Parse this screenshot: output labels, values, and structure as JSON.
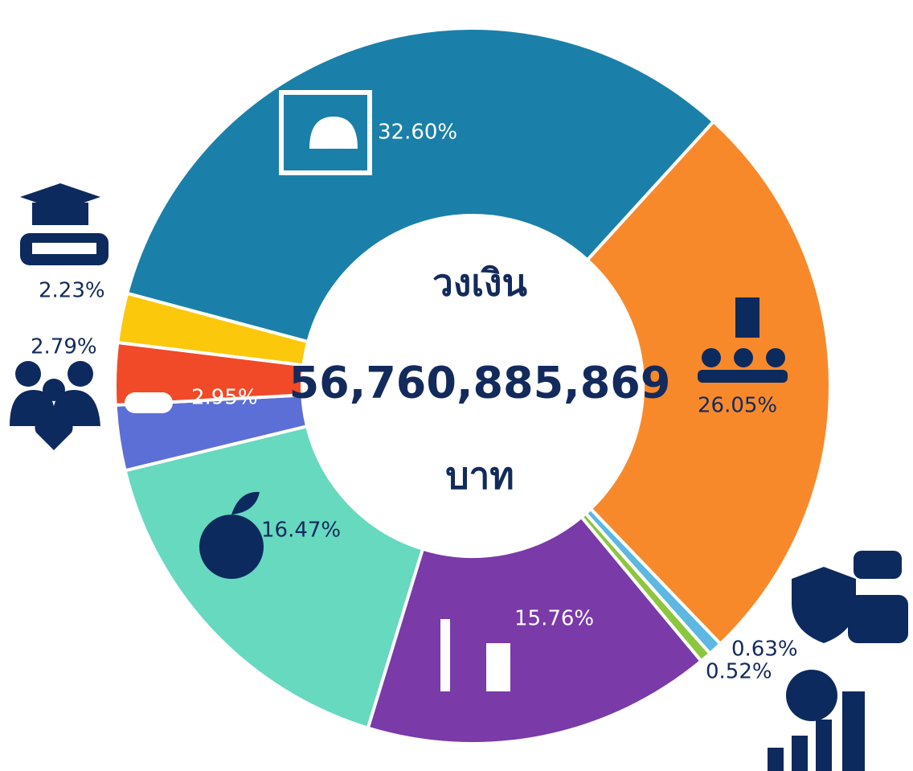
{
  "chart_data": {
    "type": "pie",
    "donut": true,
    "values": [
      32.6,
      26.05,
      0.63,
      0.52,
      15.76,
      16.47,
      2.95,
      2.79,
      2.23
    ],
    "value_labels": [
      "32.60%",
      "26.05%",
      "0.63%",
      "0.52%",
      "15.76%",
      "16.47%",
      "2.95%",
      "2.79%",
      "2.23%"
    ],
    "colors": [
      "#1a80a9",
      "#f8892b",
      "#5cb7e2",
      "#8cc63f",
      "#7a3aa8",
      "#66d9bf",
      "#5b6fd6",
      "#f04a28",
      "#fcc80c"
    ],
    "center_text": [
      "วงเงิน",
      "56,760,885,869",
      "บาท"
    ]
  }
}
